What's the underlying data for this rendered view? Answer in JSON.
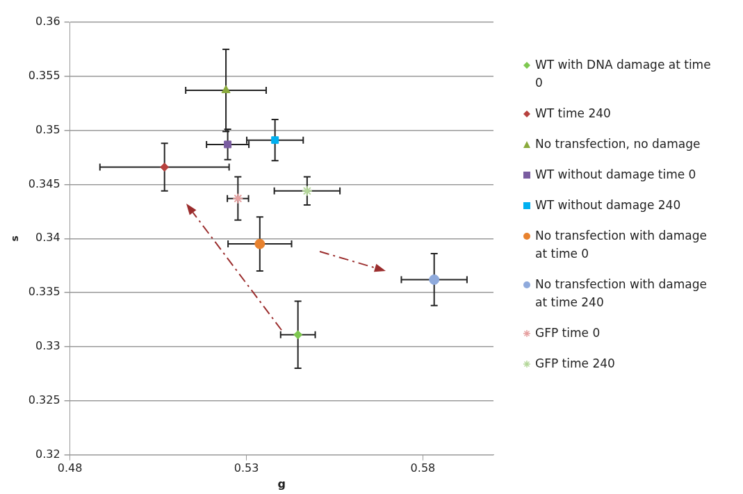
{
  "chart_data": {
    "type": "scatter",
    "xlabel": "g",
    "ylabel": "s",
    "xlim": [
      0.48,
      0.6
    ],
    "xticks": [
      0.48,
      0.53,
      0.58
    ],
    "ylim": [
      0.32,
      0.36
    ],
    "yticks": [
      0.32,
      0.325,
      0.33,
      0.335,
      0.34,
      0.345,
      0.35,
      0.355,
      0.36
    ],
    "grid": "y",
    "legend": "right",
    "series": [
      {
        "name": "WT with DNA damage at time 0",
        "color": "#7ec850",
        "marker": "diamond",
        "x": [
          0.5446
        ],
        "values": [
          0.3311
        ],
        "errors": [
          0.0031
        ],
        "xerrors": [
          0.0049
        ]
      },
      {
        "name": "WT time 240",
        "color": "#b7413e",
        "marker": "diamond",
        "x": [
          0.5068
        ],
        "values": [
          0.3466
        ],
        "errors": [
          0.0022
        ],
        "xerrors": [
          0.0183
        ]
      },
      {
        "name": "No transfection, no damage",
        "color": "#8aaa3c",
        "marker": "triangle",
        "x": [
          0.5242
        ],
        "values": [
          0.3537
        ],
        "errors": [
          0.0038
        ],
        "xerrors": [
          0.0114
        ]
      },
      {
        "name": "WT without  damage time 0",
        "color": "#7a5ca0",
        "marker": "square",
        "x": [
          0.5247
        ],
        "values": [
          0.3487
        ],
        "errors": [
          0.0014
        ],
        "xerrors": [
          0.006
        ]
      },
      {
        "name": "WT without damage 240",
        "color": "#00b0f0",
        "marker": "square",
        "x": [
          0.5381
        ],
        "values": [
          0.3491
        ],
        "errors": [
          0.0019
        ],
        "xerrors": [
          0.008
        ]
      },
      {
        "name": "No transfection with damage at time 0",
        "color": "#e8822e",
        "marker": "circle",
        "x": [
          0.5338
        ],
        "values": [
          0.3395
        ],
        "errors": [
          0.0025
        ],
        "xerrors": [
          0.009
        ]
      },
      {
        "name": "No transfection with damage at time 240",
        "color": "#8faadc",
        "marker": "circle",
        "x": [
          0.5832
        ],
        "values": [
          0.3362
        ],
        "errors": [
          0.0024
        ],
        "xerrors": [
          0.0093
        ]
      },
      {
        "name": "GFP time 0",
        "color": "#e6a0a0",
        "marker": "cross",
        "x": [
          0.5276
        ],
        "values": [
          0.3437
        ],
        "errors": [
          0.002
        ],
        "xerrors": [
          0.003
        ]
      },
      {
        "name": "GFP time 240",
        "color": "#b5d89a",
        "marker": "cross",
        "x": [
          0.5472
        ],
        "values": [
          0.3444
        ],
        "errors": [
          0.0013
        ],
        "xerrors": [
          0.0093
        ]
      }
    ]
  }
}
